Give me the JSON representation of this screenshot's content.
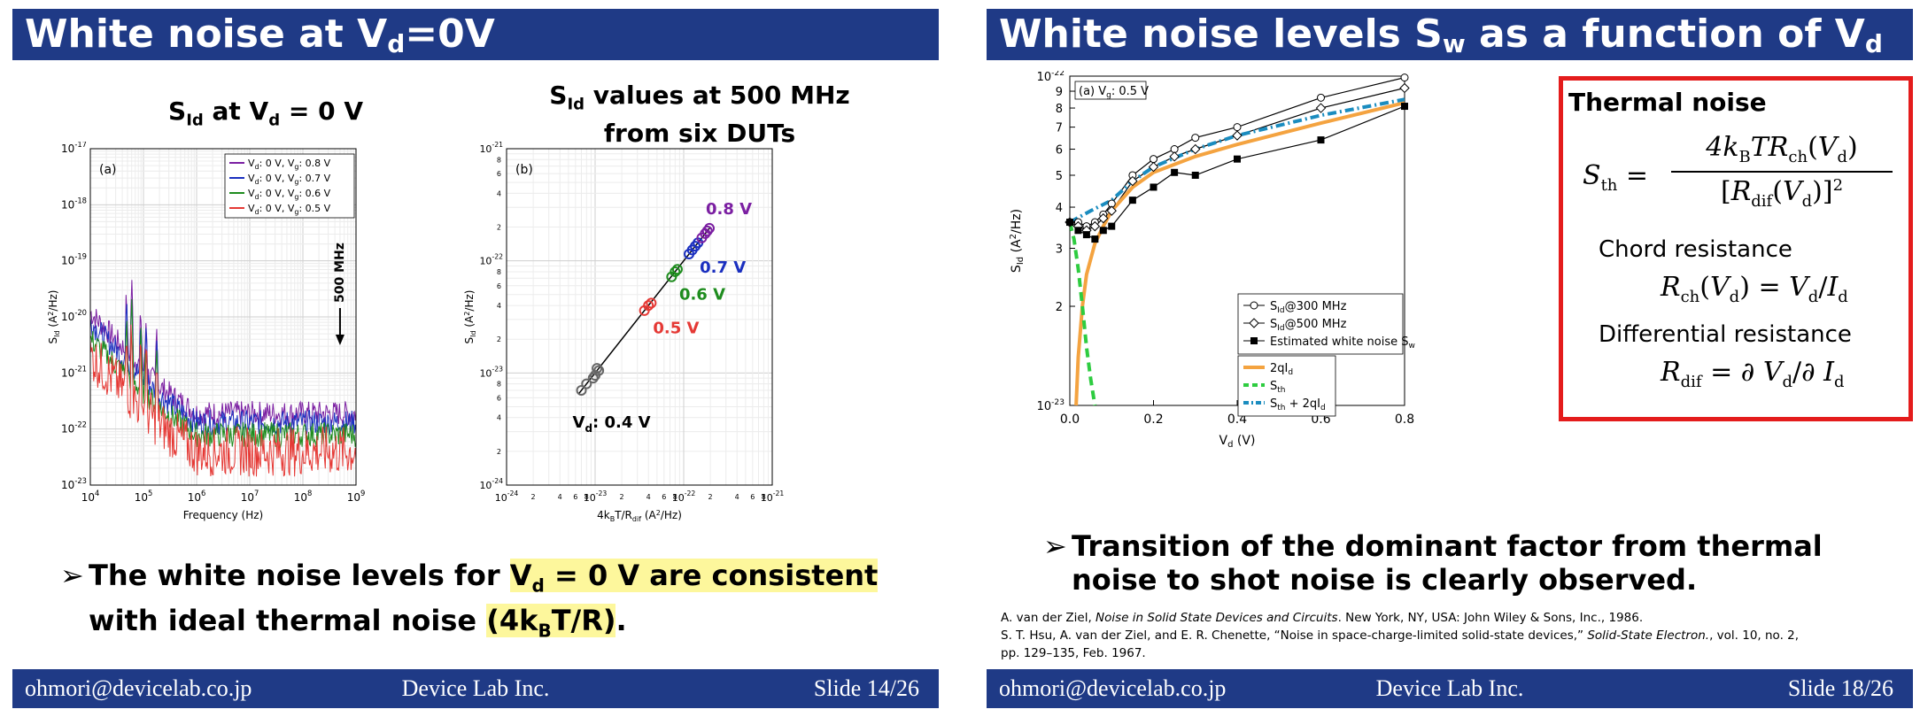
{
  "slides": [
    {
      "title_prefix": "White noise at V",
      "title_sub": "d",
      "title_suffix": "=0V",
      "footer_email": "ohmori@devicelab.co.jp",
      "footer_company": "Device Lab Inc.",
      "footer_slide": "Slide 14/26",
      "chart_a_title_prefix": "S",
      "chart_a_title_sub1": "Id",
      "chart_a_title_mid": " at V",
      "chart_a_title_sub2": "d",
      "chart_a_title_suffix": " = 0 V",
      "chart_b_title_line1_prefix": "S",
      "chart_b_title_line1_sub": "Id",
      "chart_b_title_line1_suffix": " values at 500 MHz",
      "chart_b_title_line2": "from six DUTs",
      "bullet_line1_pre": "The white noise levels for ",
      "bullet_line1_hl": "V",
      "bullet_line1_hl_sub": "d",
      "bullet_line1_hl2": " = 0 V are consistent",
      "bullet_line2_pre": "with ideal thermal noise ",
      "bullet_line2_hl": "(4k",
      "bullet_line2_hl_sub": "B",
      "bullet_line2_hl2": "T/R)",
      "bullet_line2_end": "."
    },
    {
      "title_prefix": "White noise levels S",
      "title_sub1": "w",
      "title_mid": " as a function of V",
      "title_sub2": "d",
      "footer_email": "ohmori@devicelab.co.jp",
      "footer_company": "Device Lab Inc.",
      "footer_slide": "Slide 18/26",
      "bullet_line1": "Transition of the dominant factor from thermal",
      "bullet_line2": "noise to shot noise is clearly observed.",
      "box_title": "Thermal noise",
      "chord_label": "Chord resistance",
      "diff_label": "Differential resistance",
      "ref1_authors": "A. van der Ziel, ",
      "ref1_title": "Noise in Solid State Devices and Circuits",
      "ref1_rest": ". New York, NY, USA: John Wiley & Sons, Inc., 1986.",
      "ref2_authors": "S. T. Hsu, A. van der Ziel, and E. R. Chenette, “Noise in space-charge-limited solid-state devices,” ",
      "ref2_journal": "Solid-State Electron.",
      "ref2_rest": ", vol. 10, no. 2,",
      "ref2_line2": "pp. 129–135, Feb. 1967."
    }
  ],
  "chart_data": [
    {
      "type": "line",
      "panel": "(a)",
      "title": "SId at Vd = 0 V",
      "xlabel": "Frequency (Hz)",
      "ylabel": "Sid (A2/Hz)",
      "xscale": "log",
      "yscale": "log",
      "xlim": [
        10000,
        1000000000
      ],
      "ylim": [
        1e-23,
        1e-17
      ],
      "x_ticks": [
        "10^4",
        "10^5",
        "10^6",
        "10^7",
        "10^8",
        "10^9"
      ],
      "y_ticks": [
        "10^-23",
        "10^-22",
        "10^-21",
        "10^-20",
        "10^-19",
        "10^-18",
        "10^-17"
      ],
      "annotation": "500 MHz",
      "legend_position": "top-right",
      "series": [
        {
          "name": "Vd: 0 V, Vg: 0.8 V",
          "color": "#7b1fa2",
          "plateau": 1.9e-22,
          "low_f": 1.2e-20
        },
        {
          "name": "Vd: 0 V, Vg: 0.7 V",
          "color": "#1a2fbf",
          "plateau": 1.3e-22,
          "low_f": 8e-21
        },
        {
          "name": "Vd: 0 V, Vg: 0.6 V",
          "color": "#1e8c1e",
          "plateau": 8e-23,
          "low_f": 4e-21
        },
        {
          "name": "Vd: 0 V, Vg: 0.5 V",
          "color": "#e53935",
          "plateau": 4e-23,
          "low_f": 2e-21
        }
      ],
      "label_series_prefix": "V",
      "label_d": "d",
      "label_mid": ": 0 V, V",
      "label_g": "g",
      "label_values": [
        "0.8 V",
        "0.7 V",
        "0.6 V",
        "0.5 V"
      ]
    },
    {
      "type": "scatter",
      "panel": "(b)",
      "title": "SId values at 500 MHz from six DUTs",
      "xlabel": "4kBT/Rdif (A2/Hz)",
      "ylabel": "Sid (A2/Hz)",
      "xscale": "log",
      "yscale": "log",
      "xlim": [
        1e-24,
        1e-21
      ],
      "ylim": [
        1e-24,
        1e-21
      ],
      "x_ticks": [
        "10^-24",
        "10^-23",
        "10^-22",
        "10^-21"
      ],
      "y_ticks": [
        "10^-24",
        "10^-23",
        "10^-22",
        "10^-21"
      ],
      "fit_line": [
        [
          6.5e-24,
          6.5e-24
        ],
        [
          2e-22,
          2e-22
        ]
      ],
      "groups": [
        {
          "label": "Vd: 0.4 V",
          "label_prefix": "V",
          "label_sub": "d",
          "label_suffix": ": 0.4 V",
          "color": "#666666",
          "points": [
            [
              7e-24,
              7e-24
            ],
            [
              9.5e-24,
              9e-24
            ],
            [
              1.05e-23,
              1.1e-23
            ],
            [
              1.1e-23,
              1.05e-23
            ],
            [
              1e-23,
              9.5e-24
            ],
            [
              8e-24,
              8e-24
            ]
          ]
        },
        {
          "label": "0.5 V",
          "color": "#e53935",
          "points": [
            [
              3.6e-23,
              3.6e-23
            ],
            [
              4e-23,
              4e-23
            ],
            [
              4.3e-23,
              4.2e-23
            ]
          ]
        },
        {
          "label": "0.6 V",
          "color": "#1e8c1e",
          "points": [
            [
              7.3e-23,
              7.2e-23
            ],
            [
              8e-23,
              8e-23
            ],
            [
              8.5e-23,
              8.4e-23
            ]
          ]
        },
        {
          "label": "0.7 V",
          "color": "#1a2fbf",
          "points": [
            [
              1.15e-22,
              1.15e-22
            ],
            [
              1.25e-22,
              1.25e-22
            ],
            [
              1.35e-22,
              1.35e-22
            ],
            [
              1.45e-22,
              1.45e-22
            ]
          ]
        },
        {
          "label": "0.8 V",
          "color": "#7b1fa2",
          "points": [
            [
              1.6e-22,
              1.6e-22
            ],
            [
              1.75e-22,
              1.75e-22
            ],
            [
              1.85e-22,
              1.85e-22
            ],
            [
              1.95e-22,
              1.95e-22
            ]
          ]
        }
      ]
    },
    {
      "type": "line",
      "panel": "(a) Vg: 0.5 V",
      "panel_prefix": "(a) V",
      "panel_sub": "g",
      "panel_suffix": ": 0.5 V",
      "xlabel": "Vd (V)",
      "ylabel": "Sid (A2/Hz)",
      "xscale": "linear",
      "yscale": "log",
      "xlim": [
        0,
        0.8
      ],
      "ylim": [
        1e-23,
        1e-22
      ],
      "x_ticks": [
        "0.0",
        "0.2",
        "0.4",
        "0.6",
        "0.8"
      ],
      "y_tick_values": [
        1e-23,
        2e-23,
        3e-23,
        4e-23,
        5e-23,
        6e-23,
        7e-23,
        8e-23,
        9e-23,
        1e-22
      ],
      "y_tick_labels": [
        "10^-23",
        "2",
        "3",
        "4",
        "5",
        "6",
        "7",
        "8",
        "9",
        "10^-22"
      ],
      "legend_position": "center-right",
      "series": [
        {
          "name": "SId@300 MHz",
          "marker": "circle",
          "color": "#000000",
          "x": [
            0.0,
            0.02,
            0.04,
            0.06,
            0.08,
            0.1,
            0.15,
            0.2,
            0.25,
            0.3,
            0.4,
            0.6,
            0.8
          ],
          "y": [
            3.6e-23,
            3.6e-23,
            3.5e-23,
            3.6e-23,
            3.8e-23,
            4.1e-23,
            5e-23,
            5.6e-23,
            6e-23,
            6.5e-23,
            7e-23,
            8.6e-23,
            9.9e-23
          ]
        },
        {
          "name": "SId@500 MHz",
          "marker": "diamond",
          "color": "#000000",
          "x": [
            0.0,
            0.02,
            0.04,
            0.06,
            0.08,
            0.1,
            0.15,
            0.2,
            0.25,
            0.3,
            0.4,
            0.6,
            0.8
          ],
          "y": [
            3.6e-23,
            3.5e-23,
            3.4e-23,
            3.5e-23,
            3.7e-23,
            3.9e-23,
            4.8e-23,
            5.3e-23,
            5.7e-23,
            6e-23,
            6.6e-23,
            8e-23,
            9.2e-23
          ]
        },
        {
          "name": "Estimated white noise Sw",
          "marker": "square",
          "color": "#000000",
          "x": [
            0.0,
            0.02,
            0.04,
            0.06,
            0.08,
            0.1,
            0.15,
            0.2,
            0.25,
            0.3,
            0.4,
            0.6,
            0.8
          ],
          "y": [
            3.6e-23,
            3.4e-23,
            3.3e-23,
            3.2e-23,
            3.4e-23,
            3.5e-23,
            4.2e-23,
            4.6e-23,
            5.1e-23,
            5e-23,
            5.6e-23,
            6.4e-23,
            8.1e-23
          ]
        },
        {
          "name": "2qId",
          "style": "solid",
          "color": "#f4a340",
          "x": [
            0.015,
            0.02,
            0.03,
            0.04,
            0.06,
            0.08,
            0.1,
            0.15,
            0.2,
            0.3,
            0.4,
            0.6,
            0.8
          ],
          "y": [
            1e-23,
            1.4e-23,
            2e-23,
            2.5e-23,
            3.1e-23,
            3.5e-23,
            3.9e-23,
            4.6e-23,
            5.1e-23,
            5.7e-23,
            6.2e-23,
            7.2e-23,
            8.3e-23
          ]
        },
        {
          "name": "Sth",
          "style": "dashed",
          "color": "#2ecc40",
          "x": [
            0.0,
            0.01,
            0.02,
            0.03,
            0.04,
            0.05,
            0.06
          ],
          "y": [
            3.6e-23,
            3.2e-23,
            2.6e-23,
            2e-23,
            1.5e-23,
            1.2e-23,
            1e-23
          ]
        },
        {
          "name": "Sth + 2qId",
          "style": "dashdot",
          "color": "#1a8cbf",
          "x": [
            0.0,
            0.05,
            0.1,
            0.15,
            0.2,
            0.3,
            0.4,
            0.6,
            0.8
          ],
          "y": [
            3.6e-23,
            3.9e-23,
            4.2e-23,
            4.8e-23,
            5.3e-23,
            6e-23,
            6.6e-23,
            7.6e-23,
            8.5e-23
          ]
        }
      ],
      "legend_labels": [
        {
          "pre": "S",
          "sub": "Id",
          "post": "@300 MHz"
        },
        {
          "pre": "S",
          "sub": "Id",
          "post": "@500 MHz"
        },
        {
          "pre": "Estimated white noise S",
          "sub": "w",
          "post": ""
        },
        {
          "pre": "2qI",
          "sub": "d",
          "post": ""
        },
        {
          "pre": "S",
          "sub": "th",
          "post": ""
        },
        {
          "pre": "S",
          "sub": "th",
          "post": " + 2qI",
          "sub2": "d"
        }
      ]
    }
  ]
}
